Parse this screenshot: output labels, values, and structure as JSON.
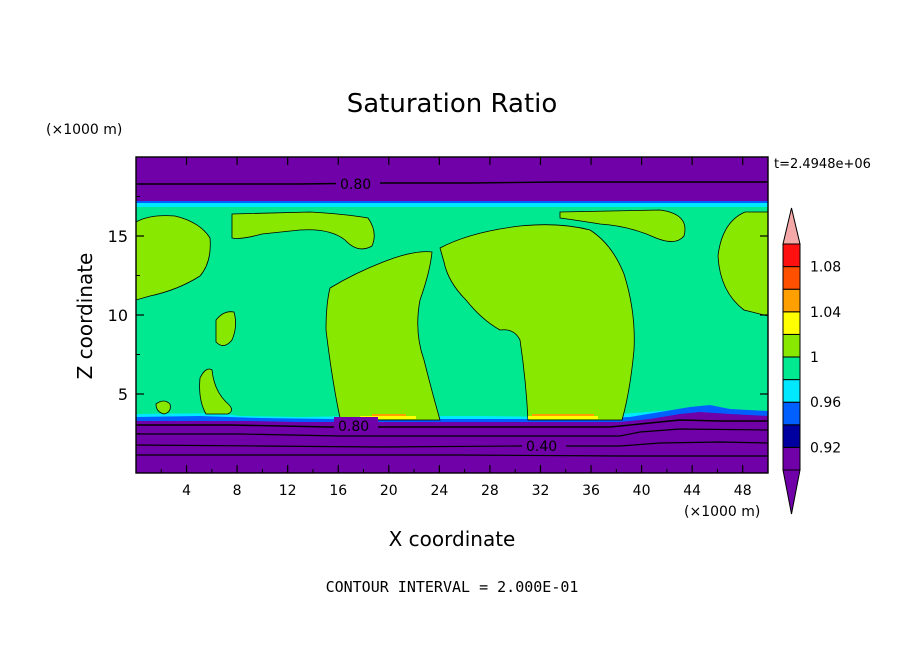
{
  "chart_data": {
    "type": "heatmap",
    "title": "Saturation Ratio",
    "xlabel": "X coordinate",
    "ylabel": "Z coordinate",
    "x_unit": "(×1000 m)",
    "y_unit": "(×1000 m)",
    "time_label": "t=2.4948e+06",
    "footer": "CONTOUR INTERVAL = 2.000E-01",
    "xlim": [
      0,
      50
    ],
    "ylim": [
      0,
      20
    ],
    "xticks": [
      4,
      8,
      12,
      16,
      20,
      24,
      28,
      32,
      36,
      40,
      44,
      48
    ],
    "yticks": [
      5,
      10,
      15
    ],
    "colorbar": {
      "levels": [
        {
          "color": "#7000a8"
        },
        {
          "color": "#0000a0"
        },
        {
          "color": "#0060ff"
        },
        {
          "color": "#00e8ff"
        },
        {
          "color": "#00e890"
        },
        {
          "color": "#88e800"
        },
        {
          "color": "#ffff00"
        },
        {
          "color": "#ffa000"
        },
        {
          "color": "#ff5000"
        },
        {
          "color": "#ff1010"
        }
      ],
      "under_color": "#7000a8",
      "over_color": "#f4a8a8",
      "tick_labels": [
        "0.92",
        "0.96",
        "1",
        "1.04",
        "1.08"
      ]
    },
    "contour_labels": [
      "0.80",
      "0.80",
      "0.40"
    ],
    "bands": {
      "upper_boundary_z": 17.0,
      "lower_boundary_z": 3.4
    },
    "colors": {
      "purple": "#7000a8",
      "green": "#00e890",
      "lime": "#88e800",
      "cyan": "#00e8ff",
      "blue": "#0060ff",
      "orange": "#ffa000",
      "yellow": "#ffff00"
    }
  }
}
